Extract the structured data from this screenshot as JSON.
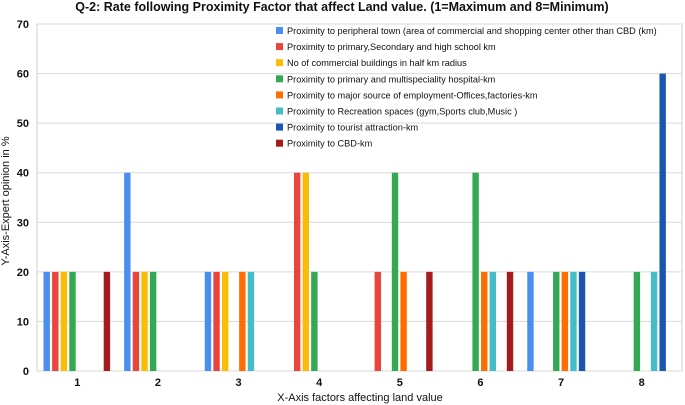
{
  "chart_data": {
    "type": "bar",
    "title": "Q-2: Rate following Proximity Factor that affect Land value. (1=Maximum and 8=Minimum)",
    "xlabel": "X-Axis factors affecting land value",
    "ylabel": "Y-Axis-Expert opinion in %",
    "ylim": [
      0,
      70
    ],
    "yticks": [
      0,
      10,
      20,
      30,
      40,
      50,
      60,
      70
    ],
    "categories": [
      "1",
      "2",
      "3",
      "4",
      "5",
      "6",
      "7",
      "8"
    ],
    "legend_position": "top-right",
    "series": [
      {
        "name": "Proximity to peripheral town (area of commercial and shopping center other than CBD (km)",
        "color": "#4a8ff0",
        "values": [
          20,
          40,
          20,
          0,
          0,
          0,
          20,
          0
        ]
      },
      {
        "name": "Proximity to primary,Secondary and high school km",
        "color": "#e8453c",
        "values": [
          20,
          20,
          20,
          40,
          20,
          0,
          0,
          0
        ]
      },
      {
        "name": "No of commercial buildings in half km radius",
        "color": "#f9bd05",
        "values": [
          20,
          20,
          20,
          40,
          0,
          0,
          0,
          0
        ]
      },
      {
        "name": "Proximity to primary and multispeciality hospital-km",
        "color": "#34a853",
        "values": [
          20,
          20,
          0,
          20,
          40,
          40,
          20,
          20
        ]
      },
      {
        "name": "Proximity to major source of employment-Offices,factories-km",
        "color": "#ff6d01",
        "values": [
          0,
          0,
          20,
          0,
          20,
          20,
          20,
          0
        ]
      },
      {
        "name": "Proximity to Recreation spaces (gym,Sports club,Music )",
        "color": "#46bdc6",
        "values": [
          0,
          0,
          20,
          0,
          0,
          20,
          20,
          20
        ]
      },
      {
        "name": "Proximity to tourist attraction-km",
        "color": "#1a56b0",
        "values": [
          0,
          0,
          0,
          0,
          0,
          0,
          20,
          60
        ]
      },
      {
        "name": "Proximity to CBD-km",
        "color": "#a61c1c",
        "values": [
          20,
          0,
          0,
          0,
          20,
          20,
          0,
          0
        ]
      }
    ]
  }
}
